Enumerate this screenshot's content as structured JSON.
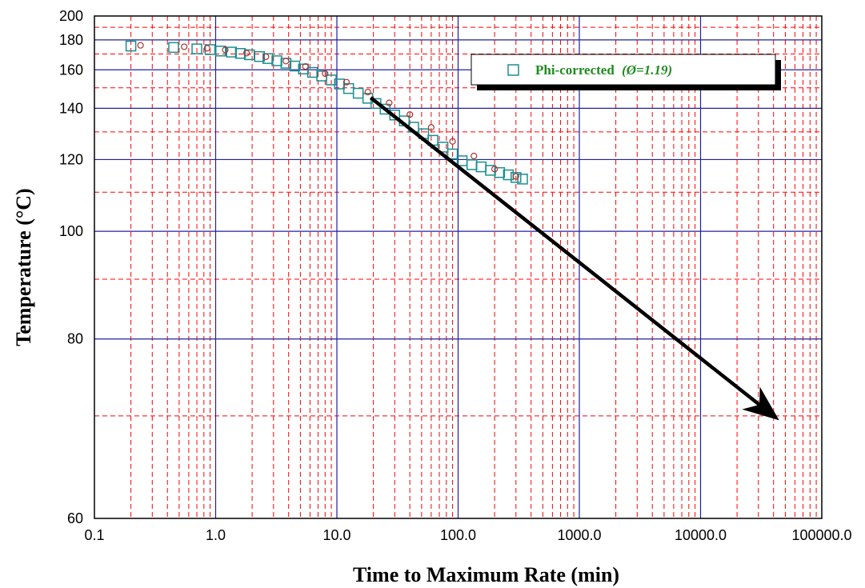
{
  "chart_data": {
    "type": "scatter",
    "xlabel": "Time to Maximum Rate (min)",
    "ylabel": "Temperature (°C)",
    "x_scale": "log",
    "y_scale": "reciprocal",
    "xlim": [
      0.1,
      100000
    ],
    "ylim": [
      60,
      200
    ],
    "x_ticks": [
      0.1,
      1,
      10,
      100,
      1000,
      10000,
      100000
    ],
    "x_tick_labels": [
      "0.1",
      "1.0",
      "10.0",
      "100.0",
      "1000.0",
      "10000.0",
      "100000.0"
    ],
    "y_ticks": [
      60,
      80,
      100,
      120,
      140,
      160,
      180,
      200
    ],
    "y_tick_labels": [
      "60",
      "80",
      "100",
      "120",
      "140",
      "160",
      "180",
      "200"
    ],
    "y_minor_ticks": [
      70,
      90,
      110,
      130,
      150,
      170,
      190
    ],
    "grid": true,
    "grid_colors": {
      "major": "#2020a0",
      "minor": "#ff0000"
    },
    "legend": {
      "position": "top-right",
      "entries": [
        "Phi-corrected",
        "(Ø=1.19)"
      ]
    },
    "series": [
      {
        "name": "Phi-corrected (Ø=1.19)",
        "marker": "open-square",
        "color": "#1a8f8f",
        "x": [
          0.2,
          0.45,
          0.7,
          0.9,
          1.1,
          1.35,
          1.6,
          1.9,
          2.3,
          2.7,
          3.2,
          3.8,
          4.5,
          5.3,
          6.3,
          7.5,
          9,
          10.5,
          12.5,
          15,
          18,
          21,
          25,
          30,
          36,
          43,
          52,
          62,
          75,
          90,
          108,
          130,
          155,
          185,
          220,
          260,
          300,
          340
        ],
        "y": [
          175.5,
          174.5,
          173.5,
          173,
          172,
          171.3,
          170.4,
          169.5,
          168.3,
          167,
          165.6,
          164,
          162.3,
          160.5,
          158.5,
          156.4,
          154.2,
          152,
          149.6,
          147.2,
          144.7,
          142.2,
          139.6,
          137,
          134.5,
          131.9,
          129.3,
          126.8,
          124.3,
          121.9,
          119.6,
          118.3,
          117.6,
          116.5,
          115.8,
          115.1,
          114.3,
          113.8
        ]
      },
      {
        "name": "",
        "marker": "open-circle",
        "color": "#b03030",
        "x": [
          0.24,
          0.55,
          0.85,
          1.2,
          1.8,
          2.6,
          3.8,
          5.5,
          8,
          12,
          18,
          27,
          40,
          60,
          90,
          135,
          200,
          300
        ],
        "y": [
          176,
          175,
          174,
          172.8,
          170.6,
          168.2,
          165.4,
          162,
          157.8,
          153,
          147.8,
          142.5,
          137.2,
          131.8,
          126.4,
          121.2,
          116.9,
          114.6
        ]
      }
    ],
    "annotations": [
      {
        "type": "arrow",
        "from": [
          19,
          145
        ],
        "to": [
          40000,
          70
        ],
        "color": "#000000"
      }
    ]
  }
}
